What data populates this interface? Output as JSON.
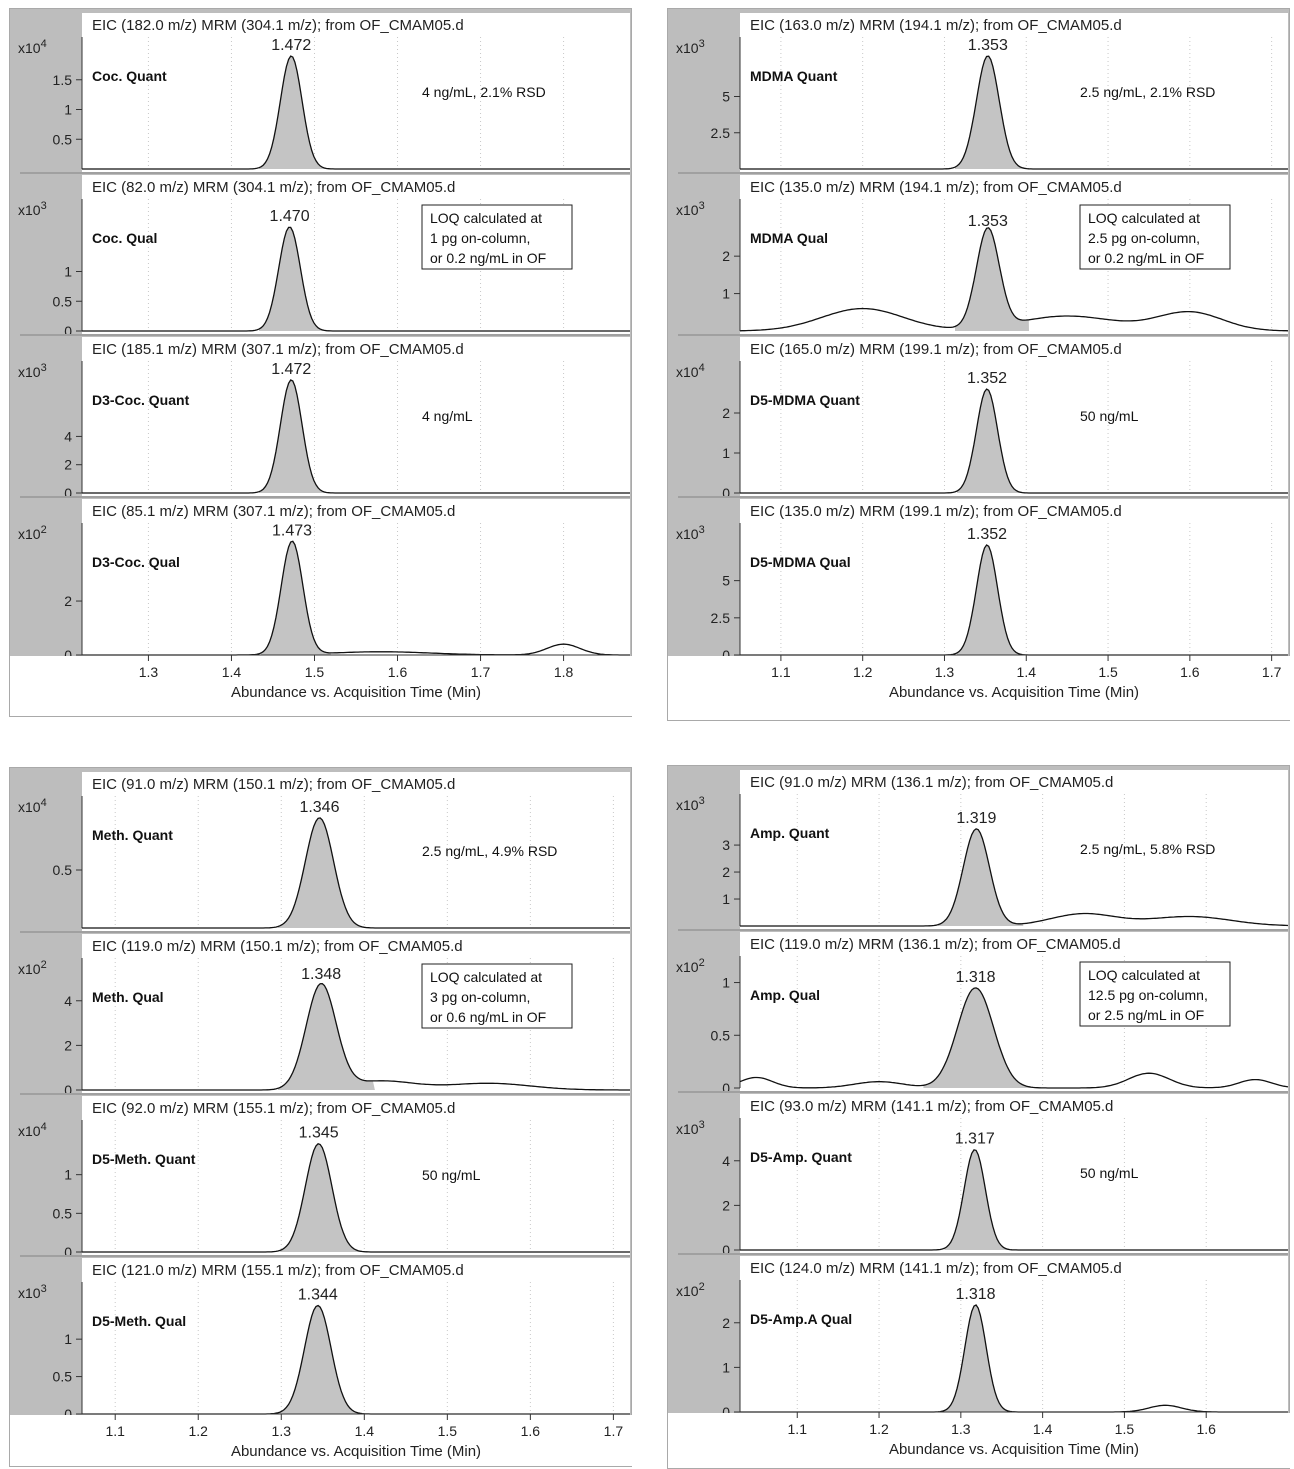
{
  "chart_data": [
    {
      "type": "line",
      "x_range": [
        1.22,
        1.88
      ],
      "x_ticks": [
        "1.3",
        "1.4",
        "1.5",
        "1.6",
        "1.7",
        "1.8"
      ],
      "xlabel": "Abundance vs. Acquisition Time (Min)",
      "subplots": [
        {
          "title": "EIC (182.0 m/z) MRM (304.1 m/z); from OF_CMAM05.d",
          "multiplier": "x10 4",
          "y_max": 1.95,
          "y_ticks": [
            "0.5",
            "1",
            "1.5"
          ],
          "compound": "Coc. Quant",
          "peak_label": "1.472",
          "peak_rt": 1.472,
          "peak_height": 1.9,
          "peak_sigma": 0.013,
          "note": [
            "4 ng/mL, 2.1% RSD"
          ],
          "note_boxed": false,
          "baseline_bumps": []
        },
        {
          "title": "EIC (82.0 m/z) MRM (304.1 m/z); from OF_CMAM05.d",
          "multiplier": "x10 3",
          "y_max": 1.95,
          "y_ticks": [
            "0",
            "0.5",
            "1"
          ],
          "compound": "Coc. Qual",
          "peak_label": "1.470",
          "peak_rt": 1.47,
          "peak_height": 1.75,
          "peak_sigma": 0.013,
          "note": [
            "LOQ calculated at",
            "1 pg on-column,",
            "or 0.2 ng/mL in OF"
          ],
          "note_boxed": true,
          "baseline_bumps": []
        },
        {
          "title": "EIC (185.1 m/z) MRM (307.1 m/z); from OF_CMAM05.d",
          "multiplier": "x10 3",
          "y_max": 8.2,
          "y_ticks": [
            "0",
            "2",
            "4"
          ],
          "compound": "D3-Coc. Quant",
          "peak_label": "1.472",
          "peak_rt": 1.472,
          "peak_height": 8.0,
          "peak_sigma": 0.013,
          "note": [
            "4 ng/mL"
          ],
          "note_boxed": false,
          "baseline_bumps": []
        },
        {
          "title": "EIC (85.1 m/z) MRM (307.1 m/z); from OF_CMAM05.d",
          "multiplier": "x10 2",
          "y_max": 4.3,
          "y_ticks": [
            "0",
            "2"
          ],
          "compound": "D3-Coc. Qual",
          "peak_label": "1.473",
          "peak_rt": 1.473,
          "peak_height": 4.2,
          "peak_sigma": 0.013,
          "note": [],
          "note_boxed": false,
          "baseline_bumps": [
            {
              "x": 1.8,
              "h": 0.4,
              "w": 0.02
            },
            {
              "x": 1.58,
              "h": 0.12,
              "w": 0.06
            }
          ]
        }
      ]
    },
    {
      "type": "line",
      "x_range": [
        1.05,
        1.72
      ],
      "x_ticks": [
        "1.1",
        "1.2",
        "1.3",
        "1.4",
        "1.5",
        "1.6",
        "1.7"
      ],
      "xlabel": "Abundance vs. Acquisition Time (Min)",
      "subplots": [
        {
          "title": "EIC (163.0 m/z) MRM (194.1 m/z); from OF_CMAM05.d",
          "multiplier": "x10 3",
          "y_max": 8.0,
          "y_ticks": [
            "2.5",
            "5"
          ],
          "compound": "MDMA Quant",
          "peak_label": "1.353",
          "peak_rt": 1.353,
          "peak_height": 7.8,
          "peak_sigma": 0.014,
          "note": [
            "2.5 ng/mL, 2.1% RSD"
          ],
          "note_boxed": false,
          "baseline_bumps": []
        },
        {
          "title": "EIC (135.0 m/z) MRM (194.1 m/z); from OF_CMAM05.d",
          "multiplier": "x10 3",
          "y_max": 3.1,
          "y_ticks": [
            "1",
            "2"
          ],
          "compound": "MDMA Qual",
          "peak_label": "1.353",
          "peak_rt": 1.353,
          "peak_height": 2.65,
          "peak_sigma": 0.014,
          "note": [
            "LOQ calculated at",
            "2.5 pg on-column,",
            "or 0.2 ng/mL in OF"
          ],
          "note_boxed": true,
          "baseline_bumps": [
            {
              "x": 1.2,
              "h": 0.6,
              "w": 0.05
            },
            {
              "x": 1.45,
              "h": 0.4,
              "w": 0.06
            },
            {
              "x": 1.6,
              "h": 0.5,
              "w": 0.04
            }
          ]
        },
        {
          "title": "EIC (165.0 m/z) MRM (199.1 m/z); from OF_CMAM05.d",
          "multiplier": "x10 4",
          "y_max": 2.9,
          "y_ticks": [
            "0",
            "1",
            "2"
          ],
          "compound": "D5-MDMA Quant",
          "peak_label": "1.352",
          "peak_rt": 1.352,
          "peak_height": 2.6,
          "peak_sigma": 0.013,
          "note": [
            "50 ng/mL"
          ],
          "note_boxed": false,
          "baseline_bumps": []
        },
        {
          "title": "EIC (135.0 m/z) MRM (199.1 m/z); from OF_CMAM05.d",
          "multiplier": "x10 3",
          "y_max": 7.8,
          "y_ticks": [
            "0",
            "2.5",
            "5"
          ],
          "compound": "D5-MDMA Qual",
          "peak_label": "1.352",
          "peak_rt": 1.352,
          "peak_height": 7.4,
          "peak_sigma": 0.013,
          "note": [],
          "note_boxed": false,
          "baseline_bumps": []
        }
      ]
    },
    {
      "type": "line",
      "x_range": [
        1.06,
        1.72
      ],
      "x_ticks": [
        "1.1",
        "1.2",
        "1.3",
        "1.4",
        "1.5",
        "1.6",
        "1.7"
      ],
      "xlabel": "Abundance vs. Acquisition Time (Min)",
      "subplots": [
        {
          "title": "EIC (91.0 m/z) MRM (150.1 m/z); from OF_CMAM05.d",
          "multiplier": "x10 4",
          "y_max": 1.0,
          "y_ticks": [
            "0.5"
          ],
          "compound": "Meth. Quant",
          "peak_label": "1.346",
          "peak_rt": 1.346,
          "peak_height": 0.95,
          "peak_sigma": 0.017,
          "note": [
            "2.5 ng/mL, 4.9% RSD"
          ],
          "note_boxed": false,
          "baseline_bumps": []
        },
        {
          "title": "EIC (119.0 m/z) MRM (150.1 m/z); from OF_CMAM05.d",
          "multiplier": "x10 2",
          "y_max": 5.2,
          "y_ticks": [
            "0",
            "2",
            "4"
          ],
          "compound": "Meth. Qual",
          "peak_label": "1.348",
          "peak_rt": 1.348,
          "peak_height": 4.7,
          "peak_sigma": 0.018,
          "note": [
            "LOQ calculated at",
            "3 pg on-column,",
            "or 0.6 ng/mL in OF"
          ],
          "note_boxed": true,
          "baseline_bumps": [
            {
              "x": 1.42,
              "h": 0.4,
              "w": 0.04
            },
            {
              "x": 1.55,
              "h": 0.3,
              "w": 0.05
            }
          ]
        },
        {
          "title": "EIC (92.0 m/z) MRM (155.1 m/z); from OF_CMAM05.d",
          "multiplier": "x10 4",
          "y_max": 1.5,
          "y_ticks": [
            "0",
            "0.5",
            "1"
          ],
          "compound": "D5-Meth. Quant",
          "peak_label": "1.345",
          "peak_rt": 1.345,
          "peak_height": 1.4,
          "peak_sigma": 0.016,
          "note": [
            "50 ng/mL"
          ],
          "note_boxed": false,
          "baseline_bumps": []
        },
        {
          "title": "EIC (121.0 m/z) MRM (155.1 m/z); from OF_CMAM05.d",
          "multiplier": "x10 3",
          "y_max": 1.55,
          "y_ticks": [
            "0",
            "0.5",
            "1"
          ],
          "compound": "D5-Meth. Qual",
          "peak_label": "1.344",
          "peak_rt": 1.344,
          "peak_height": 1.45,
          "peak_sigma": 0.016,
          "note": [],
          "note_boxed": false,
          "baseline_bumps": []
        }
      ]
    },
    {
      "type": "line",
      "x_range": [
        1.03,
        1.7
      ],
      "x_ticks": [
        "1.1",
        "1.2",
        "1.3",
        "1.4",
        "1.5",
        "1.6"
      ],
      "xlabel": "Abundance vs. Acquisition Time (Min)",
      "subplots": [
        {
          "title": "EIC (91.0 m/z) MRM (136.1 m/z); from OF_CMAM05.d",
          "multiplier": "x10 3",
          "y_max": 4.3,
          "y_ticks": [
            "1",
            "2",
            "3"
          ],
          "compound": "Amp. Quant",
          "peak_label": "1.319",
          "peak_rt": 1.319,
          "peak_height": 3.6,
          "peak_sigma": 0.016,
          "note": [
            "2.5 ng/mL, 5.8% RSD"
          ],
          "note_boxed": false,
          "baseline_bumps": [
            {
              "x": 1.45,
              "h": 0.45,
              "w": 0.04
            },
            {
              "x": 1.58,
              "h": 0.35,
              "w": 0.05
            }
          ]
        },
        {
          "title": "EIC (119.0 m/z) MRM (136.1 m/z); from OF_CMAM05.d",
          "multiplier": "x10 2",
          "y_max": 1.1,
          "y_ticks": [
            "0",
            "0.5",
            "1"
          ],
          "compound": "Amp. Qual",
          "peak_label": "1.318",
          "peak_rt": 1.318,
          "peak_height": 0.95,
          "peak_sigma": 0.022,
          "note": [
            "LOQ calculated at",
            "12.5 pg on-column,",
            "or 2.5 ng/mL in OF"
          ],
          "note_boxed": true,
          "baseline_bumps": [
            {
              "x": 1.05,
              "h": 0.1,
              "w": 0.02
            },
            {
              "x": 1.2,
              "h": 0.06,
              "w": 0.03
            },
            {
              "x": 1.53,
              "h": 0.14,
              "w": 0.025
            },
            {
              "x": 1.66,
              "h": 0.08,
              "w": 0.02
            }
          ]
        },
        {
          "title": "EIC (93.0 m/z) MRM (141.1 m/z); from OF_CMAM05.d",
          "multiplier": "x10 3",
          "y_max": 5.2,
          "y_ticks": [
            "0",
            "2",
            "4"
          ],
          "compound": "D5-Amp. Quant",
          "peak_label": "1.317",
          "peak_rt": 1.317,
          "peak_height": 4.5,
          "peak_sigma": 0.013,
          "note": [
            "50 ng/mL"
          ],
          "note_boxed": false,
          "baseline_bumps": []
        },
        {
          "title": "EIC (124.0 m/z) MRM (141.1 m/z); from OF_CMAM05.d",
          "multiplier": "x10 2",
          "y_max": 2.6,
          "y_ticks": [
            "0",
            "1",
            "2"
          ],
          "compound": "D5-Amp.A Qual",
          "peak_label": "1.318",
          "peak_rt": 1.318,
          "peak_height": 2.4,
          "peak_sigma": 0.013,
          "note": [],
          "note_boxed": false,
          "baseline_bumps": [
            {
              "x": 1.55,
              "h": 0.15,
              "w": 0.02
            }
          ]
        }
      ]
    }
  ]
}
